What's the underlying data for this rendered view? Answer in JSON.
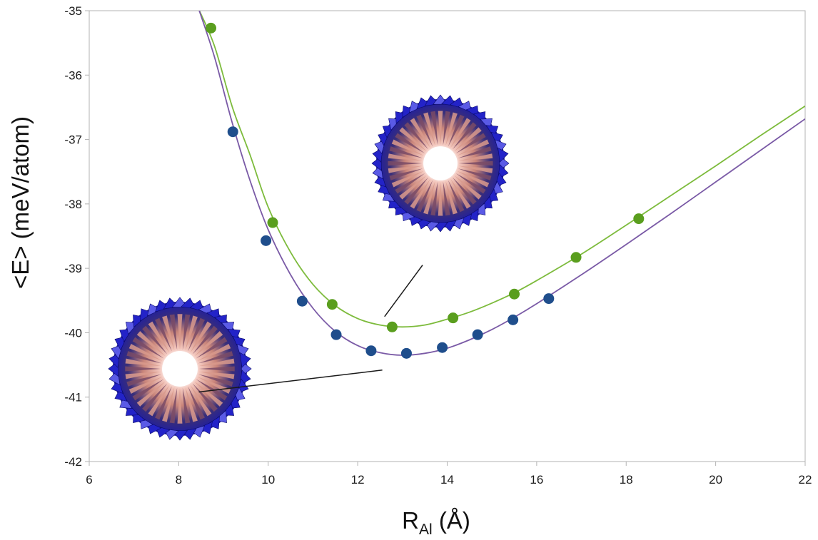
{
  "chart_data": {
    "type": "scatter",
    "title": "",
    "ylabel": "<E> (meV/atom)",
    "xlabel": {
      "main": "R",
      "sub": "Al",
      "unit": " (Å)"
    },
    "xlim": [
      6,
      22
    ],
    "ylim": [
      -42,
      -35
    ],
    "x_ticks": [
      "6",
      "8",
      "10",
      "12",
      "14",
      "16",
      "18",
      "20",
      "22"
    ],
    "y_ticks": [
      "-35",
      "-36",
      "-37",
      "-38",
      "-39",
      "-40",
      "-41",
      "-42"
    ],
    "grid": false,
    "legend": "none",
    "series": [
      {
        "color": "#5a9e1e",
        "line_color": "#7dbb3c",
        "points": [
          {
            "x": 8.72,
            "y": -35.27
          },
          {
            "x": 10.1,
            "y": -38.29
          },
          {
            "x": 11.43,
            "y": -39.56
          },
          {
            "x": 12.77,
            "y": -39.91
          },
          {
            "x": 14.13,
            "y": -39.77
          },
          {
            "x": 15.5,
            "y": -39.4
          },
          {
            "x": 16.88,
            "y": -38.83
          },
          {
            "x": 18.28,
            "y": -38.23
          }
        ],
        "fit": [
          {
            "x": 8.45,
            "y": -34.98
          },
          {
            "x": 8.8,
            "y": -35.55
          },
          {
            "x": 9.2,
            "y": -36.5
          },
          {
            "x": 9.6,
            "y": -37.25
          },
          {
            "x": 10.0,
            "y": -38.05
          },
          {
            "x": 10.5,
            "y": -38.75
          },
          {
            "x": 11.0,
            "y": -39.25
          },
          {
            "x": 11.5,
            "y": -39.58
          },
          {
            "x": 12.0,
            "y": -39.78
          },
          {
            "x": 12.5,
            "y": -39.88
          },
          {
            "x": 13.0,
            "y": -39.91
          },
          {
            "x": 13.5,
            "y": -39.88
          },
          {
            "x": 14.0,
            "y": -39.79
          },
          {
            "x": 14.5,
            "y": -39.68
          },
          {
            "x": 15.0,
            "y": -39.54
          },
          {
            "x": 15.5,
            "y": -39.38
          },
          {
            "x": 16.0,
            "y": -39.19
          },
          {
            "x": 17.0,
            "y": -38.78
          },
          {
            "x": 18.0,
            "y": -38.33
          },
          {
            "x": 19.0,
            "y": -37.87
          },
          {
            "x": 20.0,
            "y": -37.41
          },
          {
            "x": 21.0,
            "y": -36.94
          },
          {
            "x": 22.0,
            "y": -36.48
          }
        ]
      },
      {
        "color": "#1f4e8c",
        "line_color": "#7a5aa6",
        "points": [
          {
            "x": 9.21,
            "y": -36.88
          },
          {
            "x": 9.95,
            "y": -38.57
          },
          {
            "x": 10.76,
            "y": -39.51
          },
          {
            "x": 11.52,
            "y": -40.03
          },
          {
            "x": 12.3,
            "y": -40.28
          },
          {
            "x": 13.09,
            "y": -40.32
          },
          {
            "x": 13.89,
            "y": -40.23
          },
          {
            "x": 14.68,
            "y": -40.03
          },
          {
            "x": 15.47,
            "y": -39.8
          },
          {
            "x": 16.27,
            "y": -39.47
          }
        ],
        "fit": [
          {
            "x": 8.45,
            "y": -34.98
          },
          {
            "x": 8.8,
            "y": -35.72
          },
          {
            "x": 9.2,
            "y": -36.75
          },
          {
            "x": 9.6,
            "y": -37.65
          },
          {
            "x": 10.0,
            "y": -38.4
          },
          {
            "x": 10.5,
            "y": -39.1
          },
          {
            "x": 11.0,
            "y": -39.62
          },
          {
            "x": 11.5,
            "y": -39.98
          },
          {
            "x": 12.0,
            "y": -40.2
          },
          {
            "x": 12.5,
            "y": -40.31
          },
          {
            "x": 13.0,
            "y": -40.35
          },
          {
            "x": 13.5,
            "y": -40.32
          },
          {
            "x": 14.0,
            "y": -40.24
          },
          {
            "x": 14.5,
            "y": -40.11
          },
          {
            "x": 15.0,
            "y": -39.95
          },
          {
            "x": 15.5,
            "y": -39.76
          },
          {
            "x": 16.0,
            "y": -39.55
          },
          {
            "x": 17.0,
            "y": -39.1
          },
          {
            "x": 18.0,
            "y": -38.63
          },
          {
            "x": 19.0,
            "y": -38.15
          },
          {
            "x": 20.0,
            "y": -37.66
          },
          {
            "x": 21.0,
            "y": -37.17
          },
          {
            "x": 22.0,
            "y": -36.68
          }
        ]
      }
    ],
    "insets": [
      {
        "depicts": "green-minimum",
        "pointer": [
          {
            "x": 12.6,
            "y": -39.75
          },
          {
            "x": 13.45,
            "y": -38.95
          }
        ]
      },
      {
        "depicts": "blue-minimum",
        "pointer": [
          {
            "x": 8.45,
            "y": -40.92
          },
          {
            "x": 12.55,
            "y": -40.58
          }
        ]
      }
    ]
  }
}
